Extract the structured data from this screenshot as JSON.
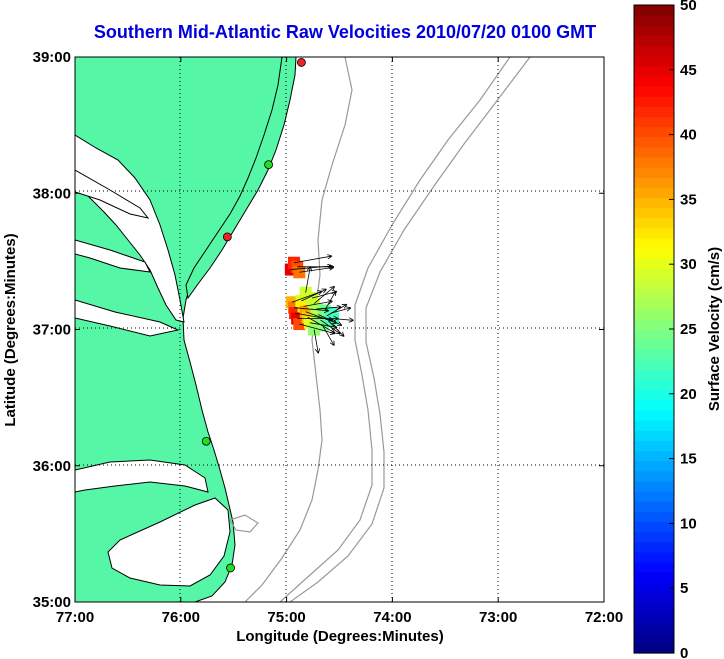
{
  "title": "Southern Mid-Atlantic Raw Velocities 2010/07/20 0100 GMT",
  "colors": {
    "land": "#55f7a6",
    "coastline": "#000000",
    "bathymetry": "#999999",
    "grid": "#000000",
    "title": "#0000dd",
    "station_green": "#22dd22",
    "station_red": "#ee2222"
  },
  "map": {
    "xlabel": "Longitude (Degrees:Minutes)",
    "ylabel": "Latitude (Degrees:Minutes)",
    "lon_range": [
      -77,
      -72
    ],
    "lat_range": [
      35,
      39
    ],
    "x_ticks": [
      {
        "value": -77,
        "label": "77:00"
      },
      {
        "value": -76,
        "label": "76:00"
      },
      {
        "value": -75,
        "label": "75:00"
      },
      {
        "value": -74,
        "label": "74:00"
      },
      {
        "value": -73,
        "label": "73:00"
      },
      {
        "value": -72,
        "label": "72:00"
      }
    ],
    "y_ticks": [
      {
        "value": 35,
        "label": "35:00"
      },
      {
        "value": 36,
        "label": "36:00"
      },
      {
        "value": 37,
        "label": "37:00"
      },
      {
        "value": 38,
        "label": "38:00"
      },
      {
        "value": 39,
        "label": "39:00"
      }
    ],
    "grid": true,
    "stations": [
      {
        "lon": -74.86,
        "lat": 38.96,
        "color": "red"
      },
      {
        "lon": -75.17,
        "lat": 38.21,
        "color": "green"
      },
      {
        "lon": -75.56,
        "lat": 37.68,
        "color": "red"
      },
      {
        "lon": -75.76,
        "lat": 36.18,
        "color": "green"
      },
      {
        "lon": -75.53,
        "lat": 35.25,
        "color": "green"
      }
    ]
  },
  "colorbar": {
    "label": "Surface Velocity (cm/s)",
    "min": 0,
    "max": 50,
    "tick_labels": [
      "0",
      "5",
      "10",
      "15",
      "20",
      "25",
      "30",
      "35",
      "40",
      "45",
      "50"
    ],
    "colormap": "jet"
  },
  "velocities": [
    {
      "lon": -74.96,
      "lat": 37.44,
      "speed": 45,
      "dir_deg": 5
    },
    {
      "lon": -74.93,
      "lat": 37.49,
      "speed": 42,
      "dir_deg": 10
    },
    {
      "lon": -74.9,
      "lat": 37.46,
      "speed": 40,
      "dir_deg": 0
    },
    {
      "lon": -74.88,
      "lat": 37.42,
      "speed": 38,
      "dir_deg": 8
    },
    {
      "lon": -74.95,
      "lat": 37.2,
      "speed": 35,
      "dir_deg": 20
    },
    {
      "lon": -74.93,
      "lat": 37.16,
      "speed": 38,
      "dir_deg": -5
    },
    {
      "lon": -74.92,
      "lat": 37.12,
      "speed": 42,
      "dir_deg": -10
    },
    {
      "lon": -74.9,
      "lat": 37.08,
      "speed": 45,
      "dir_deg": 0
    },
    {
      "lon": -74.88,
      "lat": 37.04,
      "speed": 40,
      "dir_deg": -15
    },
    {
      "lon": -74.86,
      "lat": 37.21,
      "speed": 30,
      "dir_deg": 25
    },
    {
      "lon": -74.84,
      "lat": 37.17,
      "speed": 32,
      "dir_deg": 10
    },
    {
      "lon": -74.82,
      "lat": 37.13,
      "speed": 36,
      "dir_deg": -20
    },
    {
      "lon": -74.8,
      "lat": 37.09,
      "speed": 34,
      "dir_deg": -30
    },
    {
      "lon": -74.78,
      "lat": 37.05,
      "speed": 30,
      "dir_deg": -10
    },
    {
      "lon": -74.76,
      "lat": 37.23,
      "speed": 28,
      "dir_deg": 15
    },
    {
      "lon": -74.74,
      "lat": 37.19,
      "speed": 29,
      "dir_deg": 40
    },
    {
      "lon": -74.72,
      "lat": 37.15,
      "speed": 27,
      "dir_deg": 5
    },
    {
      "lon": -74.7,
      "lat": 37.11,
      "speed": 28,
      "dir_deg": -25
    },
    {
      "lon": -74.68,
      "lat": 37.07,
      "speed": 26,
      "dir_deg": -35
    },
    {
      "lon": -74.66,
      "lat": 37.03,
      "speed": 25,
      "dir_deg": -60
    },
    {
      "lon": -74.64,
      "lat": 37.14,
      "speed": 24,
      "dir_deg": 60
    },
    {
      "lon": -74.62,
      "lat": 37.1,
      "speed": 25,
      "dir_deg": 30
    },
    {
      "lon": -74.6,
      "lat": 37.06,
      "speed": 23,
      "dir_deg": -45
    },
    {
      "lon": -74.58,
      "lat": 37.12,
      "speed": 22,
      "dir_deg": 15
    },
    {
      "lon": -74.56,
      "lat": 37.08,
      "speed": 22,
      "dir_deg": -5
    },
    {
      "lon": -74.82,
      "lat": 37.27,
      "speed": 29,
      "dir_deg": 80
    },
    {
      "lon": -74.74,
      "lat": 37.0,
      "speed": 26,
      "dir_deg": -80
    }
  ]
}
